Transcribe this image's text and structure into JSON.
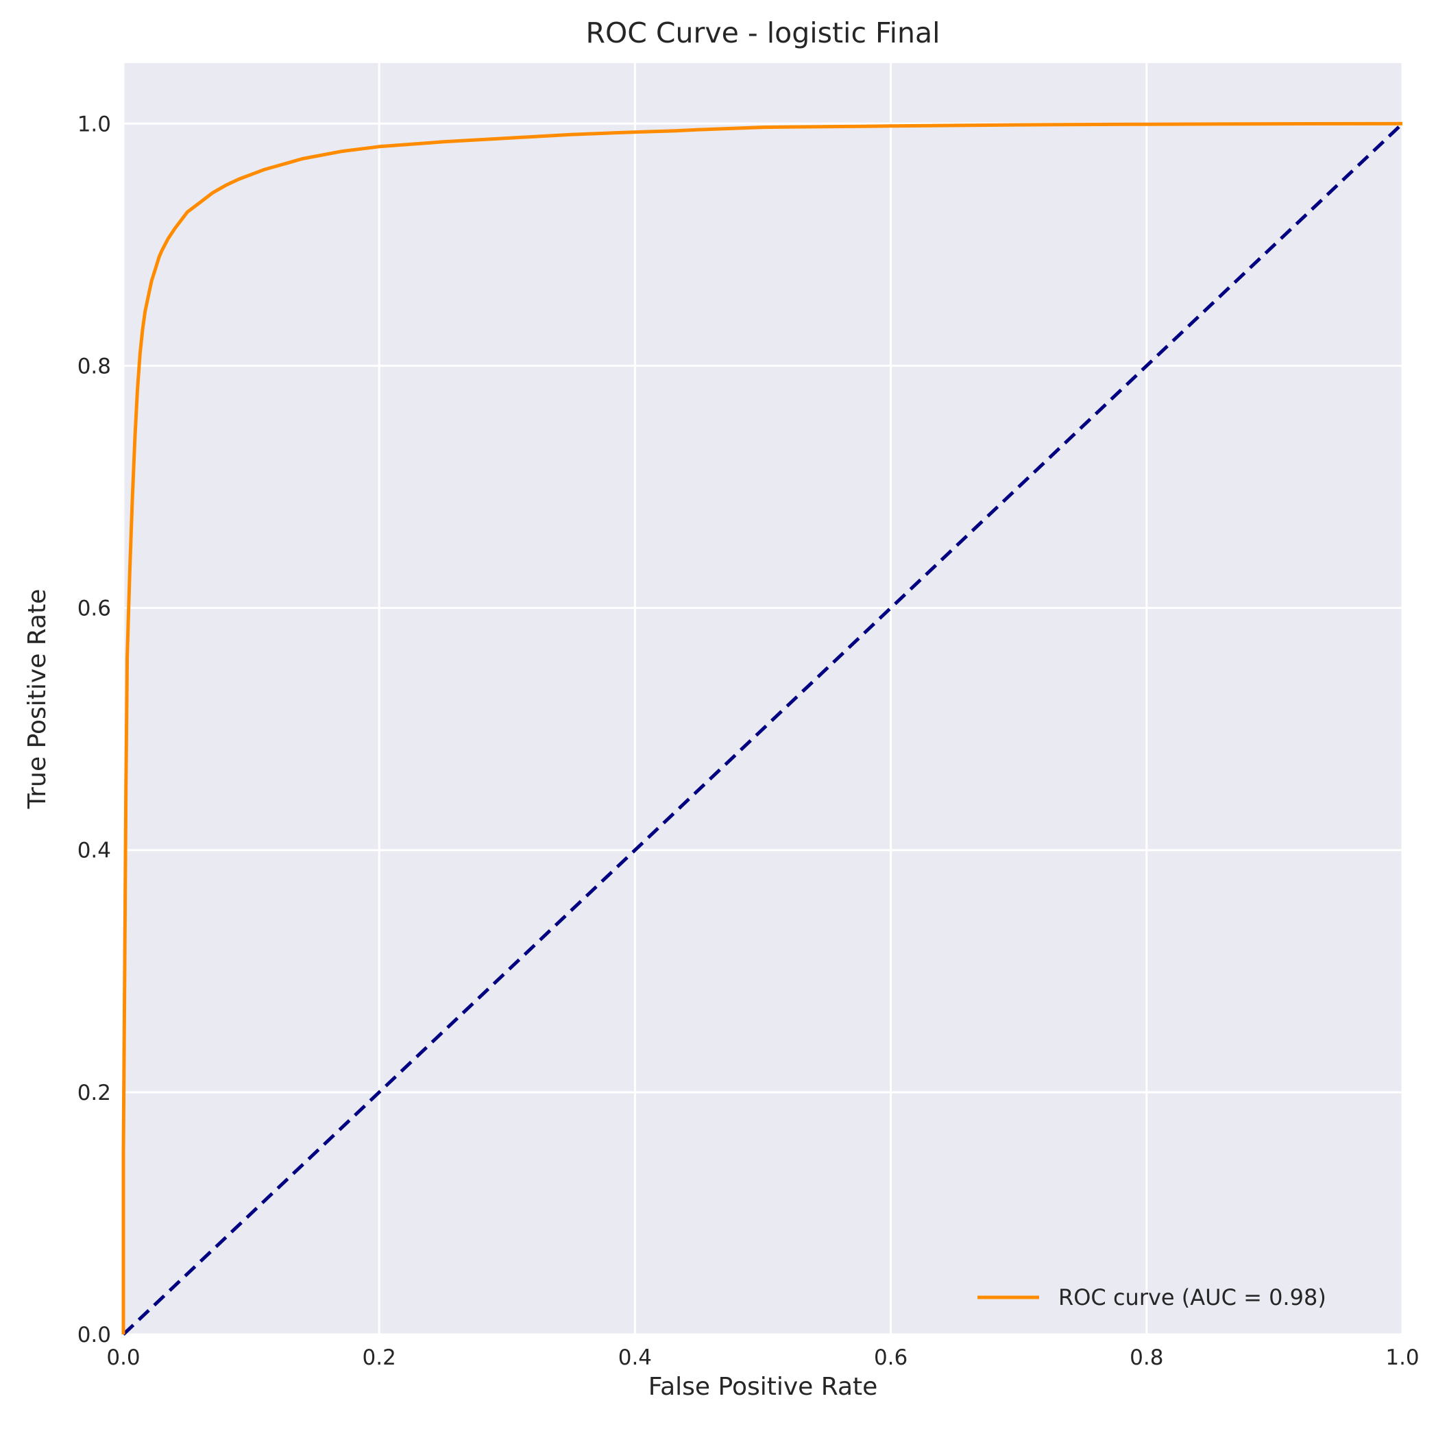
{
  "chart_data": {
    "type": "line",
    "title": "ROC Curve - logistic Final",
    "xlabel": "False Positive Rate",
    "ylabel": "True Positive Rate",
    "xlim": [
      0.0,
      1.0
    ],
    "ylim": [
      0.0,
      1.05
    ],
    "x_ticks": [
      0.0,
      0.2,
      0.4,
      0.6,
      0.8,
      1.0
    ],
    "x_tick_labels": [
      "0.0",
      "0.2",
      "0.4",
      "0.6",
      "0.8",
      "1.0"
    ],
    "y_ticks": [
      0.0,
      0.2,
      0.4,
      0.6,
      0.8,
      1.0
    ],
    "y_tick_labels": [
      "0.0",
      "0.2",
      "0.4",
      "0.6",
      "0.8",
      "1.0"
    ],
    "grid": true,
    "background_color": "#eaeaf2",
    "grid_color": "#ffffff",
    "legend": {
      "placement": "lower-right",
      "entries": [
        "ROC curve (AUC = 0.98)"
      ]
    },
    "series": [
      {
        "name": "ROC curve (AUC = 0.98)",
        "color": "#ff8c00",
        "style": "solid",
        "x": [
          0.0,
          0.0,
          0.001,
          0.002,
          0.003,
          0.005,
          0.007,
          0.009,
          0.011,
          0.013,
          0.015,
          0.017,
          0.02,
          0.022,
          0.025,
          0.028,
          0.03,
          0.035,
          0.04,
          0.045,
          0.05,
          0.06,
          0.07,
          0.08,
          0.09,
          0.1,
          0.11,
          0.12,
          0.13,
          0.14,
          0.15,
          0.17,
          0.2,
          0.25,
          0.3,
          0.35,
          0.4,
          0.43,
          0.45,
          0.5,
          0.6,
          0.7,
          0.8,
          0.9,
          1.0
        ],
        "y": [
          0.0,
          0.15,
          0.3,
          0.45,
          0.56,
          0.63,
          0.69,
          0.74,
          0.78,
          0.81,
          0.83,
          0.845,
          0.86,
          0.87,
          0.88,
          0.89,
          0.895,
          0.905,
          0.913,
          0.92,
          0.927,
          0.935,
          0.943,
          0.949,
          0.954,
          0.958,
          0.962,
          0.965,
          0.968,
          0.971,
          0.973,
          0.977,
          0.981,
          0.985,
          0.988,
          0.991,
          0.993,
          0.994,
          0.995,
          0.997,
          0.998,
          0.999,
          0.9995,
          0.9998,
          1.0
        ]
      },
      {
        "name": "",
        "color": "#000080",
        "style": "dashed",
        "x": [
          0.0,
          1.0
        ],
        "y": [
          0.0,
          1.0
        ]
      }
    ]
  }
}
